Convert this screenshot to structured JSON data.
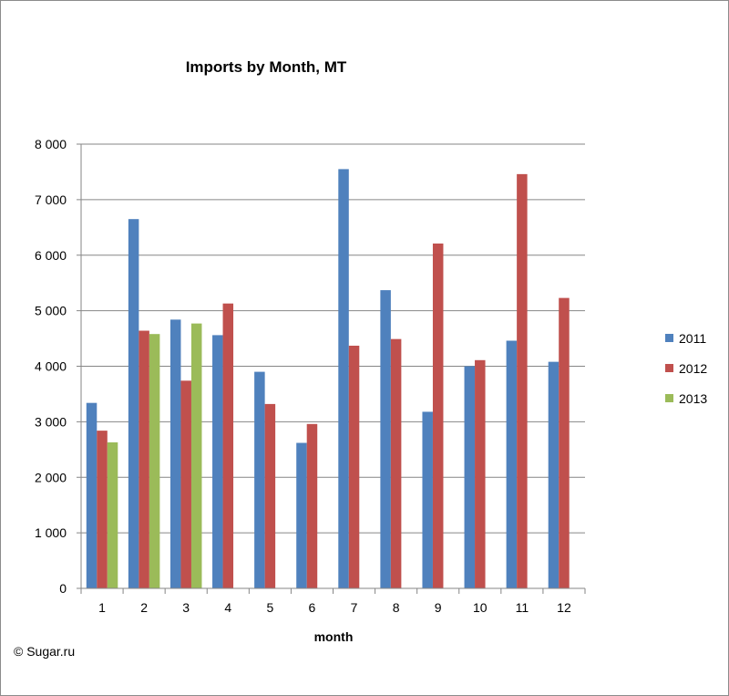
{
  "chart_data": {
    "type": "bar",
    "title": "Imports by Month, MT",
    "xlabel": "month",
    "ylabel": "",
    "categories": [
      "1",
      "2",
      "3",
      "4",
      "5",
      "6",
      "7",
      "8",
      "9",
      "10",
      "11",
      "12"
    ],
    "ylim": [
      0,
      8000
    ],
    "yticks": [
      0,
      1000,
      2000,
      3000,
      4000,
      5000,
      6000,
      7000,
      8000
    ],
    "ytick_labels": [
      "0",
      "1 000",
      "2 000",
      "3 000",
      "4 000",
      "5 000",
      "6 000",
      "7 000",
      "8 000"
    ],
    "grid": true,
    "legend_position": "right",
    "series": [
      {
        "name": "2011",
        "color": "#4f81bd",
        "values": [
          3340,
          6650,
          4840,
          4560,
          3900,
          2620,
          7550,
          5370,
          3180,
          4000,
          4460,
          4080
        ]
      },
      {
        "name": "2012",
        "color": "#c0504d",
        "values": [
          2840,
          4640,
          3740,
          5130,
          3320,
          2960,
          4370,
          4490,
          6210,
          4110,
          7460,
          5230
        ]
      },
      {
        "name": "2013",
        "color": "#9bbb59",
        "values": [
          2630,
          4580,
          4770,
          null,
          null,
          null,
          null,
          null,
          null,
          null,
          null,
          null
        ]
      }
    ]
  },
  "credit": "© Sugar.ru"
}
